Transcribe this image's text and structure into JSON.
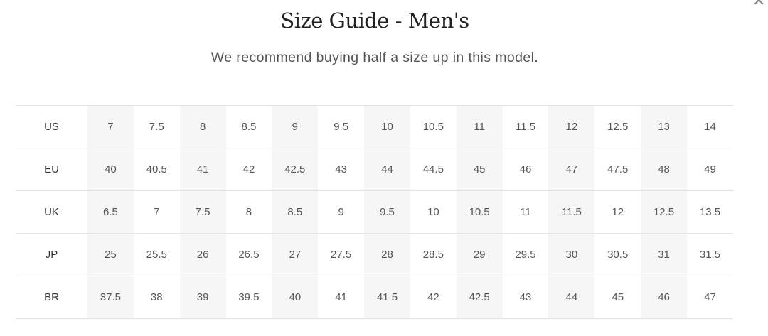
{
  "title": "Size Guide - Men's",
  "subtitle": "We recommend buying half a size up in this model.",
  "close_icon": "close-x-icon",
  "colors": {
    "shaded_column": "#f6f6f6",
    "border": "#e3e3e3"
  },
  "rows": [
    {
      "label": "US",
      "values": [
        "7",
        "7.5",
        "8",
        "8.5",
        "9",
        "9.5",
        "10",
        "10.5",
        "11",
        "11.5",
        "12",
        "12.5",
        "13",
        "14"
      ]
    },
    {
      "label": "EU",
      "values": [
        "40",
        "40.5",
        "41",
        "42",
        "42.5",
        "43",
        "44",
        "44.5",
        "45",
        "46",
        "47",
        "47.5",
        "48",
        "49"
      ]
    },
    {
      "label": "UK",
      "values": [
        "6.5",
        "7",
        "7.5",
        "8",
        "8.5",
        "9",
        "9.5",
        "10",
        "10.5",
        "11",
        "11.5",
        "12",
        "12.5",
        "13.5"
      ]
    },
    {
      "label": "JP",
      "values": [
        "25",
        "25.5",
        "26",
        "26.5",
        "27",
        "27.5",
        "28",
        "28.5",
        "29",
        "29.5",
        "30",
        "30.5",
        "31",
        "31.5"
      ]
    },
    {
      "label": "BR",
      "values": [
        "37.5",
        "38",
        "39",
        "39.5",
        "40",
        "41",
        "41.5",
        "42",
        "42.5",
        "43",
        "44",
        "45",
        "46",
        "47"
      ]
    }
  ]
}
